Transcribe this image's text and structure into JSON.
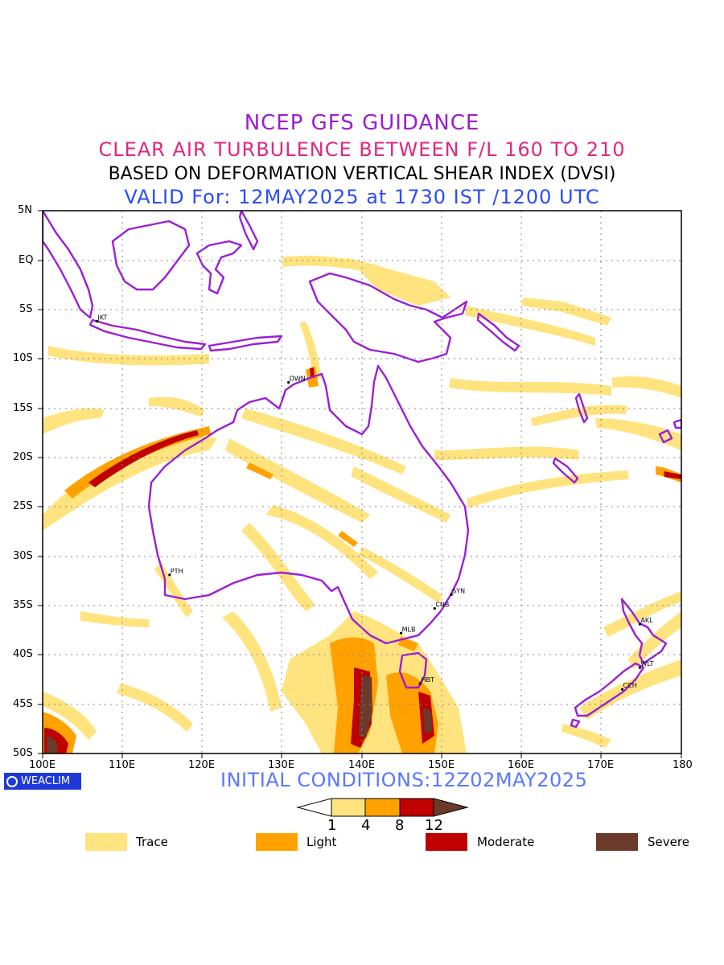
{
  "titles": {
    "line1": "NCEP GFS GUIDANCE",
    "line2": "CLEAR AIR TURBULENCE BETWEEN F/L 160 TO 210",
    "line3": "BASED ON DEFORMATION VERTICAL SHEAR INDEX (DVSI)",
    "line4": "VALID For: 12MAY2025 at 1730 IST /1200 UTC"
  },
  "map": {
    "lat_labels": [
      "5N",
      "EQ",
      "5S",
      "10S",
      "15S",
      "20S",
      "25S",
      "30S",
      "35S",
      "40S",
      "45S",
      "50S"
    ],
    "lon_labels": [
      "100E",
      "110E",
      "120E",
      "130E",
      "140E",
      "150E",
      "160E",
      "170E",
      "180"
    ],
    "stations": [
      {
        "name": "JKT",
        "lon": 106.8,
        "lat": -6.2
      },
      {
        "name": "DWN",
        "lon": 130.8,
        "lat": -12.4
      },
      {
        "name": "PTH",
        "lon": 115.9,
        "lat": -31.9
      },
      {
        "name": "SYN",
        "lon": 151.2,
        "lat": -33.9
      },
      {
        "name": "CNB",
        "lon": 149.1,
        "lat": -35.3
      },
      {
        "name": "MLB",
        "lon": 144.9,
        "lat": -37.8
      },
      {
        "name": "HBT",
        "lon": 147.3,
        "lat": -42.9
      },
      {
        "name": "AKL",
        "lon": 174.8,
        "lat": -36.9
      },
      {
        "name": "WLT",
        "lon": 174.8,
        "lat": -41.3
      },
      {
        "name": "CCH",
        "lon": 172.6,
        "lat": -43.5
      }
    ],
    "coast_color": "#9b1fd4",
    "grid": "on"
  },
  "footer": {
    "brand": "WEACLIM",
    "initial_conditions": "INITIAL CONDITIONS:12Z02MAY2025"
  },
  "colorbar": {
    "ticks": [
      "1",
      "4",
      "8",
      "12"
    ],
    "colors": [
      "#ffffff",
      "#ffe37e",
      "#ffa200",
      "#c00000",
      "#6b3a2a"
    ]
  },
  "legend": [
    {
      "label": "Trace",
      "color": "#ffe37e"
    },
    {
      "label": "Light",
      "color": "#ffa200"
    },
    {
      "label": "Moderate",
      "color": "#c00000"
    },
    {
      "label": "Severe",
      "color": "#6b3a2a"
    }
  ]
}
